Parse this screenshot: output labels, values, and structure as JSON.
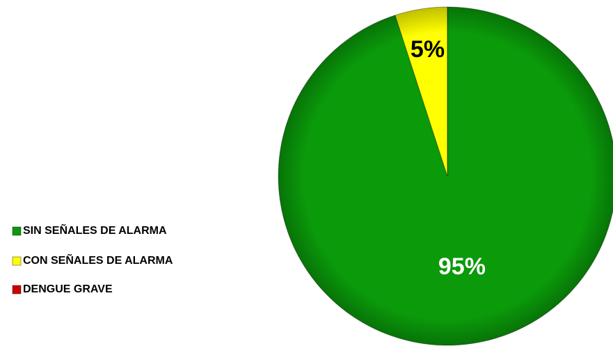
{
  "chart_data": {
    "type": "pie",
    "categories": [
      "SIN SEÑALES DE ALARMA",
      "CON SEÑALES DE ALARMA",
      "DENGUE GRAVE"
    ],
    "values": [
      95,
      5,
      0
    ],
    "value_labels": [
      "95%",
      "5%",
      null
    ],
    "colors": [
      "#0a9a0a",
      "#ffff00",
      "#cc0000"
    ],
    "label_colors": [
      "#ffffff",
      "#000000",
      "#000000"
    ],
    "legend": "left"
  }
}
